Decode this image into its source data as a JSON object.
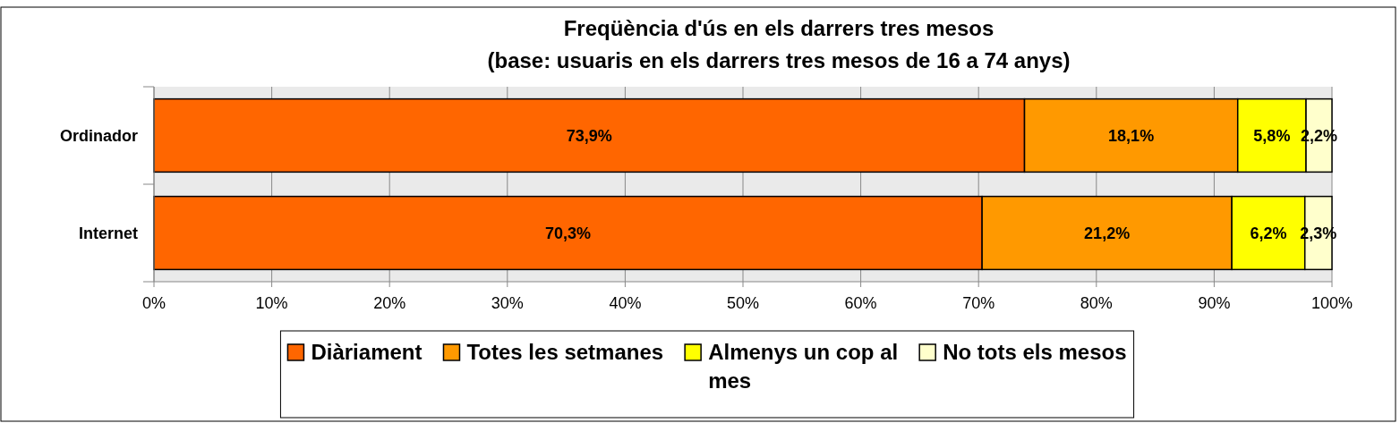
{
  "chart_data": {
    "type": "bar",
    "orientation": "horizontal",
    "stacked": true,
    "title": "Freqüència d'ús en els darrers tres mesos",
    "subtitle": "(base: usuaris en els darrers tres mesos de 16 a 74 anys)",
    "categories": [
      "Ordinador",
      "Internet"
    ],
    "series": [
      {
        "name": "Diàriament",
        "color": "#ff6600",
        "values": [
          73.9,
          70.3
        ],
        "value_labels": [
          "73,9%",
          "70,3%"
        ]
      },
      {
        "name": "Totes les setmanes",
        "color": "#ff9900",
        "values": [
          18.1,
          21.2
        ],
        "value_labels": [
          "18,1%",
          "21,2%"
        ]
      },
      {
        "name": "Almenys un cop al mes",
        "color": "#ffff00",
        "values": [
          5.8,
          6.2
        ],
        "value_labels": [
          "5,8%",
          "6,2%"
        ]
      },
      {
        "name": "No tots els mesos",
        "color": "#ffffcc",
        "values": [
          2.2,
          2.3
        ],
        "value_labels": [
          "2,2%",
          "2,3%"
        ]
      }
    ],
    "xlim": [
      0,
      100
    ],
    "xticks": [
      {
        "value": 0,
        "label": "0%"
      },
      {
        "value": 10,
        "label": "10%"
      },
      {
        "value": 20,
        "label": "20%"
      },
      {
        "value": 30,
        "label": "30%"
      },
      {
        "value": 40,
        "label": "40%"
      },
      {
        "value": 50,
        "label": "50%"
      },
      {
        "value": 60,
        "label": "60%"
      },
      {
        "value": 70,
        "label": "70%"
      },
      {
        "value": 80,
        "label": "80%"
      },
      {
        "value": 90,
        "label": "90%"
      },
      {
        "value": 100,
        "label": "100%"
      }
    ],
    "grid": "x",
    "legend": "bottom"
  }
}
